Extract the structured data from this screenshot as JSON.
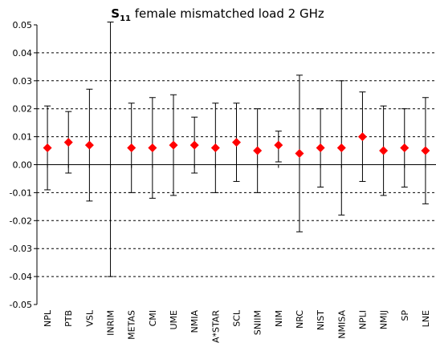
{
  "chart_data": {
    "type": "scatter",
    "title_main": "S",
    "title_sub": "11",
    "title_rest": "female mismatched load   2 GHz",
    "xlabel": "",
    "ylabel": "",
    "ylim": [
      -0.05,
      0.05
    ],
    "y_ticks": [
      "0.05",
      "0.04",
      "0.03",
      "0.02",
      "0.01",
      "0.00",
      "-0.01",
      "-0.02",
      "-0.03",
      "-0.04",
      "-0.05"
    ],
    "grid": "horizontal dashed",
    "marker_color": "#ff0000",
    "marker_shape": "diamond",
    "categories": [
      "NPL",
      "PTB",
      "VSL",
      "INRIM",
      "METAS",
      "CMI",
      "UME",
      "NMIA",
      "A*STAR",
      "SCL",
      "SNIIM",
      "NIM",
      "NRC",
      "NIST",
      "NMISA",
      "NPLI",
      "NMIJ",
      "SP",
      "LNE"
    ],
    "values": [
      0.006,
      0.008,
      0.007,
      null,
      0.006,
      0.006,
      0.007,
      0.007,
      0.006,
      0.008,
      0.005,
      0.007,
      0.004,
      0.006,
      0.006,
      0.01,
      0.005,
      0.006,
      0.005
    ],
    "error_low": [
      -0.009,
      -0.003,
      -0.013,
      -0.04,
      -0.01,
      -0.012,
      -0.011,
      -0.003,
      -0.01,
      -0.006,
      -0.01,
      0.001,
      -0.024,
      -0.008,
      -0.018,
      -0.006,
      -0.011,
      -0.008,
      -0.014
    ],
    "error_high": [
      0.021,
      0.019,
      0.027,
      0.051,
      0.022,
      0.024,
      0.025,
      0.017,
      0.022,
      0.022,
      0.02,
      0.012,
      0.032,
      0.02,
      0.03,
      0.026,
      0.021,
      0.02,
      0.024
    ]
  }
}
